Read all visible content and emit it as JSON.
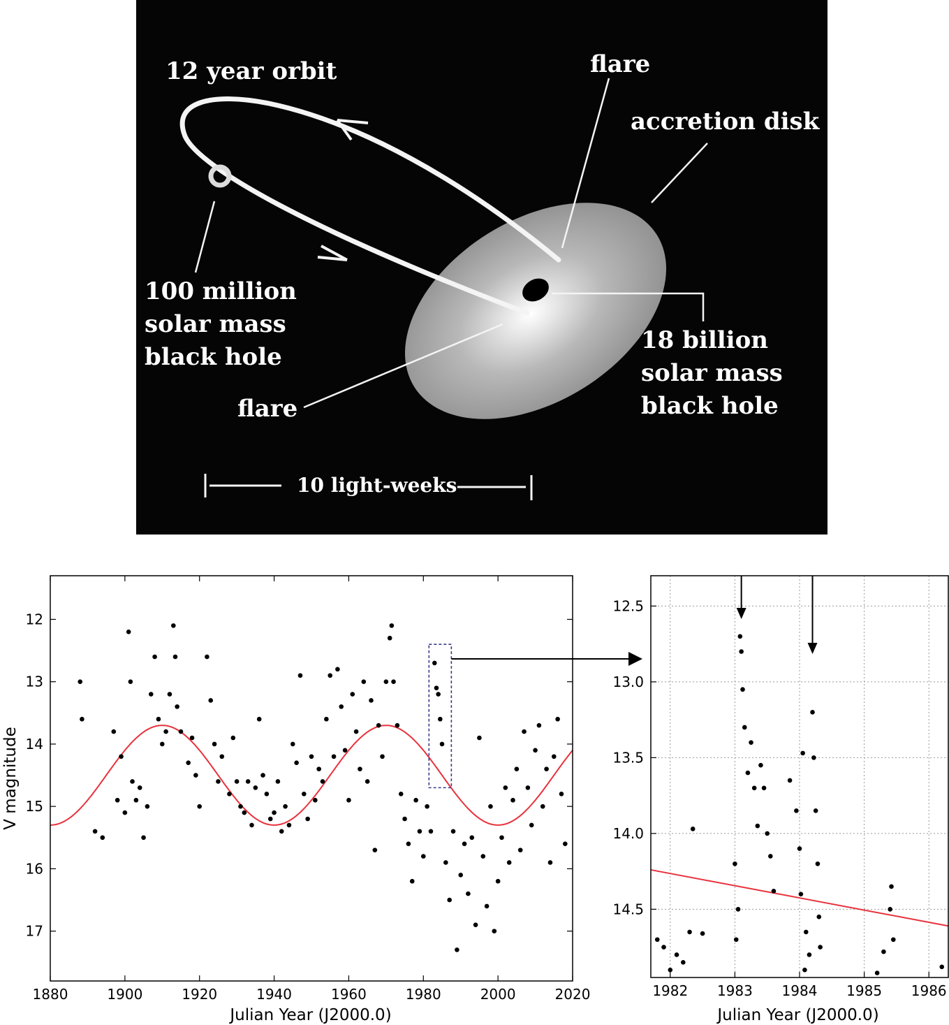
{
  "diagram": {
    "labels": {
      "orbit": "12 year orbit",
      "flare_top": "flare",
      "accretion": "accretion disk",
      "small_bh_1": "100 million",
      "small_bh_2": "solar mass",
      "small_bh_3": "black hole",
      "big_bh_1": "18 billion",
      "big_bh_2": "solar mass",
      "big_bh_3": "black hole",
      "flare_bottom": "flare",
      "scale": "10 light-weeks"
    }
  },
  "chart_data": [
    {
      "type": "scatter",
      "xlabel": "Julian Year (J2000.0)",
      "ylabel": "V magnitude",
      "xlim": [
        1880,
        2020
      ],
      "ylim": [
        17.8,
        11.3
      ],
      "y_inverted": true,
      "xticks": [
        1880,
        1900,
        1920,
        1940,
        1960,
        1980,
        2000,
        2020
      ],
      "yticks": [
        12,
        13,
        14,
        15,
        16,
        17
      ],
      "grid": false,
      "model_curve": {
        "color": "#e8323c",
        "type": "sinusoid",
        "mean": 14.5,
        "amplitude": 0.8,
        "period_years": 60,
        "minimum_magnitude_at": [
          1910,
          1970
        ],
        "maximum_magnitude_at": [
          1940,
          2000
        ]
      },
      "zoom_box": {
        "x": [
          1981.5,
          1987.5
        ],
        "y": [
          12.4,
          14.7
        ],
        "color": "#3a3a8a"
      },
      "points": [
        [
          1888,
          13.0
        ],
        [
          1888.5,
          13.6
        ],
        [
          1892,
          15.4
        ],
        [
          1894,
          15.5
        ],
        [
          1897,
          13.8
        ],
        [
          1898,
          14.9
        ],
        [
          1899,
          14.2
        ],
        [
          1900,
          15.1
        ],
        [
          1901,
          12.2
        ],
        [
          1901.5,
          13.0
        ],
        [
          1902,
          14.6
        ],
        [
          1903,
          14.9
        ],
        [
          1904,
          14.7
        ],
        [
          1905,
          15.5
        ],
        [
          1906,
          15.0
        ],
        [
          1907,
          13.2
        ],
        [
          1908,
          12.6
        ],
        [
          1909,
          13.6
        ],
        [
          1910,
          14.0
        ],
        [
          1911,
          13.8
        ],
        [
          1912,
          13.2
        ],
        [
          1913,
          12.1
        ],
        [
          1913.5,
          12.6
        ],
        [
          1914,
          13.4
        ],
        [
          1915,
          13.8
        ],
        [
          1917,
          14.3
        ],
        [
          1918,
          13.9
        ],
        [
          1919,
          14.5
        ],
        [
          1920,
          15.0
        ],
        [
          1922,
          12.6
        ],
        [
          1923,
          13.3
        ],
        [
          1924,
          14.0
        ],
        [
          1925,
          14.6
        ],
        [
          1926,
          14.2
        ],
        [
          1928,
          14.8
        ],
        [
          1929,
          13.9
        ],
        [
          1930,
          14.6
        ],
        [
          1931,
          15.0
        ],
        [
          1932,
          15.1
        ],
        [
          1933,
          14.6
        ],
        [
          1934,
          15.3
        ],
        [
          1935,
          14.7
        ],
        [
          1936,
          13.6
        ],
        [
          1937,
          14.5
        ],
        [
          1938,
          14.8
        ],
        [
          1939,
          15.2
        ],
        [
          1940,
          15.1
        ],
        [
          1941,
          14.6
        ],
        [
          1942,
          15.4
        ],
        [
          1943,
          15.0
        ],
        [
          1944,
          15.3
        ],
        [
          1945,
          14.0
        ],
        [
          1946,
          14.3
        ],
        [
          1947,
          12.9
        ],
        [
          1948,
          14.8
        ],
        [
          1949,
          15.2
        ],
        [
          1950,
          14.2
        ],
        [
          1951,
          14.9
        ],
        [
          1952,
          14.4
        ],
        [
          1953,
          14.6
        ],
        [
          1954,
          13.6
        ],
        [
          1955,
          12.9
        ],
        [
          1956,
          14.2
        ],
        [
          1957,
          12.8
        ],
        [
          1958,
          13.4
        ],
        [
          1959,
          14.1
        ],
        [
          1960,
          14.9
        ],
        [
          1961,
          13.2
        ],
        [
          1962,
          13.8
        ],
        [
          1963,
          14.4
        ],
        [
          1964,
          13.0
        ],
        [
          1965,
          14.6
        ],
        [
          1966,
          13.3
        ],
        [
          1967,
          15.7
        ],
        [
          1968,
          13.7
        ],
        [
          1969,
          14.2
        ],
        [
          1970,
          13.0
        ],
        [
          1971,
          12.3
        ],
        [
          1971.5,
          12.1
        ],
        [
          1972,
          13.0
        ],
        [
          1973,
          13.7
        ],
        [
          1974,
          14.8
        ],
        [
          1975,
          15.2
        ],
        [
          1976,
          15.6
        ],
        [
          1977,
          16.2
        ],
        [
          1978,
          14.9
        ],
        [
          1979,
          15.4
        ],
        [
          1980,
          15.8
        ],
        [
          1981,
          15.0
        ],
        [
          1982,
          15.4
        ],
        [
          1983,
          12.7
        ],
        [
          1983.5,
          13.1
        ],
        [
          1984,
          13.2
        ],
        [
          1984.5,
          13.6
        ],
        [
          1985,
          14.0
        ],
        [
          1986,
          15.9
        ],
        [
          1987,
          16.5
        ],
        [
          1988,
          15.4
        ],
        [
          1989,
          17.3
        ],
        [
          1990,
          16.1
        ],
        [
          1991,
          15.6
        ],
        [
          1992,
          16.4
        ],
        [
          1993,
          15.5
        ],
        [
          1994,
          16.9
        ],
        [
          1995,
          13.9
        ],
        [
          1996,
          15.8
        ],
        [
          1997,
          16.6
        ],
        [
          1998,
          15.0
        ],
        [
          1999,
          17.0
        ],
        [
          2000,
          16.2
        ],
        [
          2001,
          15.5
        ],
        [
          2002,
          14.7
        ],
        [
          2003,
          15.9
        ],
        [
          2004,
          14.9
        ],
        [
          2005,
          14.4
        ],
        [
          2006,
          15.7
        ],
        [
          2007,
          13.8
        ],
        [
          2008,
          14.7
        ],
        [
          2009,
          15.3
        ],
        [
          2010,
          14.1
        ],
        [
          2011,
          13.7
        ],
        [
          2012,
          15.0
        ],
        [
          2013,
          14.4
        ],
        [
          2014,
          15.9
        ],
        [
          2015,
          14.2
        ],
        [
          2016,
          13.6
        ],
        [
          2017,
          14.8
        ],
        [
          2018,
          15.6
        ]
      ]
    },
    {
      "type": "scatter",
      "xlabel": "Julian Year (J2000.0)",
      "ylabel": "",
      "xlim": [
        1981.7,
        1986.3
      ],
      "ylim": [
        14.95,
        12.3
      ],
      "y_inverted": true,
      "xticks": [
        1982,
        1983,
        1984,
        1985,
        1986
      ],
      "yticks": [
        12.5,
        13.0,
        13.5,
        14.0,
        14.5
      ],
      "ytick_labels": [
        "12.5",
        "13.0",
        "13.5",
        "14.0",
        "14.5"
      ],
      "grid": true,
      "model_line": {
        "color": "#e8323c",
        "x": [
          1981.7,
          1986.3
        ],
        "y": [
          14.24,
          14.61
        ]
      },
      "flare_arrows_at": [
        1983.1,
        1984.2
      ],
      "points": [
        [
          1981.8,
          14.7
        ],
        [
          1981.9,
          14.75
        ],
        [
          1982.0,
          14.9
        ],
        [
          1982.1,
          14.8
        ],
        [
          1982.2,
          14.85
        ],
        [
          1982.3,
          14.65
        ],
        [
          1982.35,
          13.97
        ],
        [
          1982.5,
          14.66
        ],
        [
          1983.0,
          14.2
        ],
        [
          1983.02,
          14.7
        ],
        [
          1983.05,
          14.5
        ],
        [
          1983.08,
          12.7
        ],
        [
          1983.1,
          12.8
        ],
        [
          1983.12,
          13.05
        ],
        [
          1983.15,
          13.3
        ],
        [
          1983.2,
          13.6
        ],
        [
          1983.25,
          13.4
        ],
        [
          1983.3,
          13.7
        ],
        [
          1983.35,
          13.95
        ],
        [
          1983.4,
          13.55
        ],
        [
          1983.45,
          13.7
        ],
        [
          1983.5,
          14.0
        ],
        [
          1983.55,
          14.15
        ],
        [
          1983.6,
          14.38
        ],
        [
          1983.85,
          13.65
        ],
        [
          1983.95,
          13.85
        ],
        [
          1984.0,
          14.1
        ],
        [
          1984.02,
          14.4
        ],
        [
          1984.05,
          13.47
        ],
        [
          1984.08,
          14.9
        ],
        [
          1984.1,
          14.65
        ],
        [
          1984.15,
          14.8
        ],
        [
          1984.2,
          13.2
        ],
        [
          1984.22,
          13.5
        ],
        [
          1984.25,
          13.85
        ],
        [
          1984.28,
          14.2
        ],
        [
          1984.3,
          14.55
        ],
        [
          1984.32,
          14.75
        ],
        [
          1985.2,
          14.92
        ],
        [
          1985.3,
          14.78
        ],
        [
          1985.4,
          14.5
        ],
        [
          1985.42,
          14.35
        ],
        [
          1985.45,
          14.7
        ],
        [
          1986.2,
          14.88
        ]
      ]
    }
  ]
}
